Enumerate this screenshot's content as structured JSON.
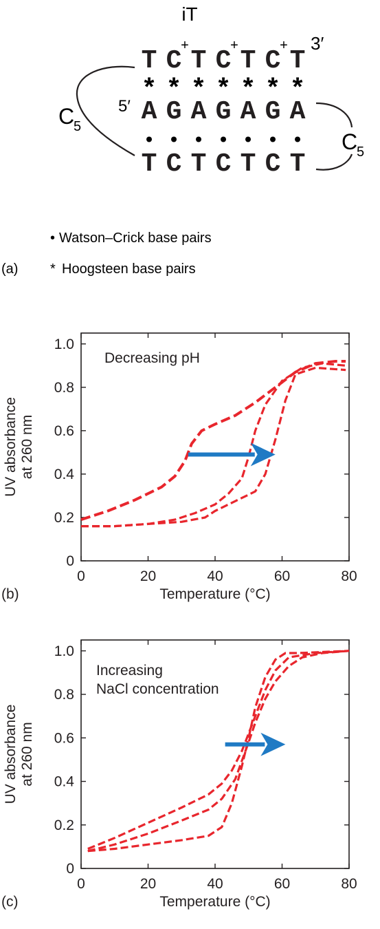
{
  "colors": {
    "curve": "#e8262d",
    "arrow": "#1f7ac4",
    "ink": "#231f20"
  },
  "diagram": {
    "title": "iT",
    "panel_label": "(a)",
    "strand_top": [
      "T",
      "C",
      "T",
      "C",
      "T",
      "C",
      "T"
    ],
    "strand_middle": [
      "A",
      "G",
      "A",
      "G",
      "A",
      "G",
      "A"
    ],
    "strand_bottom": [
      "T",
      "C",
      "T",
      "C",
      "T",
      "C",
      "T"
    ],
    "plus_sign": "+",
    "hoogsteen_symbol": "*",
    "watson_symbol": "•",
    "prime_3": "3′",
    "prime_5": "5′",
    "loop_label": "C",
    "loop_subscript": "5",
    "legend_watson": "Watson–Crick base pairs",
    "legend_hoogsteen": "Hoogsteen base pairs"
  },
  "chart_data": [
    {
      "type": "line",
      "panel_label": "(b)",
      "annotation": "Decreasing pH",
      "xlabel": "Temperature (°C)",
      "ylabel_line1": "UV absorbance",
      "ylabel_line2": "at 260 nm",
      "xlim": [
        0,
        80
      ],
      "ylim": [
        0,
        1.05
      ],
      "xticks": [
        0,
        20,
        40,
        60,
        80
      ],
      "yticks": [
        0,
        0.2,
        0.4,
        0.6,
        0.8,
        1.0
      ],
      "ytick_labels": [
        "0",
        "0.2",
        "0.4",
        "0.6",
        "0.8",
        "1.0"
      ],
      "arrow": {
        "from": [
          32,
          0.49
        ],
        "to": [
          58,
          0.49
        ]
      },
      "series": [
        {
          "x": [
            0,
            8,
            16,
            24,
            28,
            31,
            33,
            36,
            40,
            46,
            52,
            58,
            64,
            70,
            76,
            79
          ],
          "y": [
            0.19,
            0.23,
            0.28,
            0.34,
            0.39,
            0.46,
            0.54,
            0.6,
            0.63,
            0.67,
            0.73,
            0.8,
            0.87,
            0.91,
            0.92,
            0.92
          ]
        },
        {
          "x": [
            0,
            10,
            20,
            28,
            34,
            40,
            44,
            48,
            50,
            52,
            55,
            60,
            66,
            72,
            79
          ],
          "y": [
            0.16,
            0.16,
            0.17,
            0.19,
            0.22,
            0.26,
            0.31,
            0.38,
            0.48,
            0.6,
            0.72,
            0.83,
            0.89,
            0.91,
            0.9
          ]
        },
        {
          "x": [
            0,
            10,
            20,
            30,
            37,
            40,
            44,
            48,
            52,
            55,
            58,
            61,
            64,
            70,
            79
          ],
          "y": [
            0.16,
            0.16,
            0.17,
            0.18,
            0.2,
            0.23,
            0.26,
            0.29,
            0.32,
            0.4,
            0.56,
            0.74,
            0.86,
            0.89,
            0.88
          ]
        }
      ]
    },
    {
      "type": "line",
      "panel_label": "(c)",
      "annotation_line1": "Increasing",
      "annotation_line2": "NaCl concentration",
      "xlabel": "Temperature (°C)",
      "ylabel_line1": "UV absorbance",
      "ylabel_line2": "at 260 nm",
      "xlim": [
        0,
        80
      ],
      "ylim": [
        0,
        1.05
      ],
      "xticks": [
        0,
        20,
        40,
        60,
        80
      ],
      "yticks": [
        0,
        0.2,
        0.4,
        0.6,
        0.8,
        1.0
      ],
      "ytick_labels": [
        "0",
        "0.2",
        "0.4",
        "0.6",
        "0.8",
        "1.0"
      ],
      "arrow": {
        "from": [
          43,
          0.57
        ],
        "to": [
          61,
          0.57
        ]
      },
      "series": [
        {
          "x": [
            2,
            10,
            20,
            30,
            38,
            42,
            45,
            48,
            50,
            52,
            55,
            58,
            62,
            70,
            80
          ],
          "y": [
            0.09,
            0.14,
            0.21,
            0.28,
            0.34,
            0.39,
            0.45,
            0.54,
            0.62,
            0.7,
            0.82,
            0.91,
            0.97,
            0.99,
            1.0
          ]
        },
        {
          "x": [
            2,
            10,
            20,
            30,
            38,
            42,
            46,
            50,
            52,
            55,
            58,
            62,
            66,
            72,
            80
          ],
          "y": [
            0.08,
            0.11,
            0.16,
            0.22,
            0.27,
            0.32,
            0.41,
            0.58,
            0.67,
            0.78,
            0.86,
            0.93,
            0.97,
            0.99,
            1.0
          ]
        },
        {
          "x": [
            2,
            10,
            20,
            30,
            38,
            42,
            45,
            48,
            50,
            52,
            55,
            58,
            61,
            65,
            80
          ],
          "y": [
            0.08,
            0.09,
            0.11,
            0.13,
            0.15,
            0.19,
            0.3,
            0.47,
            0.6,
            0.74,
            0.88,
            0.96,
            0.99,
            0.99,
            1.0
          ]
        }
      ]
    }
  ]
}
